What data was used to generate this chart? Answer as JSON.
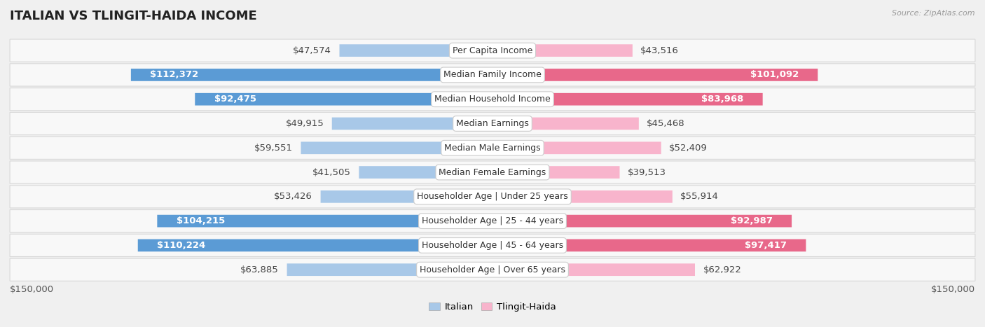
{
  "title": "ITALIAN VS TLINGIT-HAIDA INCOME",
  "source": "Source: ZipAtlas.com",
  "categories": [
    "Per Capita Income",
    "Median Family Income",
    "Median Household Income",
    "Median Earnings",
    "Median Male Earnings",
    "Median Female Earnings",
    "Householder Age | Under 25 years",
    "Householder Age | 25 - 44 years",
    "Householder Age | 45 - 64 years",
    "Householder Age | Over 65 years"
  ],
  "italian_values": [
    47574,
    112372,
    92475,
    49915,
    59551,
    41505,
    53426,
    104215,
    110224,
    63885
  ],
  "tlingit_values": [
    43516,
    101092,
    83968,
    45468,
    52409,
    39513,
    55914,
    92987,
    97417,
    62922
  ],
  "italian_labels": [
    "$47,574",
    "$112,372",
    "$92,475",
    "$49,915",
    "$59,551",
    "$41,505",
    "$53,426",
    "$104,215",
    "$110,224",
    "$63,885"
  ],
  "tlingit_labels": [
    "$43,516",
    "$101,092",
    "$83,968",
    "$45,468",
    "$52,409",
    "$39,513",
    "$55,914",
    "$92,987",
    "$97,417",
    "$62,922"
  ],
  "italian_color_light": "#a8c8e8",
  "italian_color_dark": "#5b9bd5",
  "tlingit_color_light": "#f8b4cc",
  "tlingit_color_dark": "#e8688a",
  "max_value": 150000,
  "background_color": "#f0f0f0",
  "row_bg_even": "#f9f9f9",
  "row_bg_odd": "#f2f2f2",
  "label_fontsize": 9.5,
  "title_fontsize": 13,
  "legend_italian": "Italian",
  "legend_tlingit": "Tlingit-Haida",
  "axis_label_left": "$150,000",
  "axis_label_right": "$150,000",
  "italian_inside_indices": [
    1,
    2,
    7,
    8
  ],
  "tlingit_inside_indices": [
    1,
    2,
    7,
    8
  ]
}
